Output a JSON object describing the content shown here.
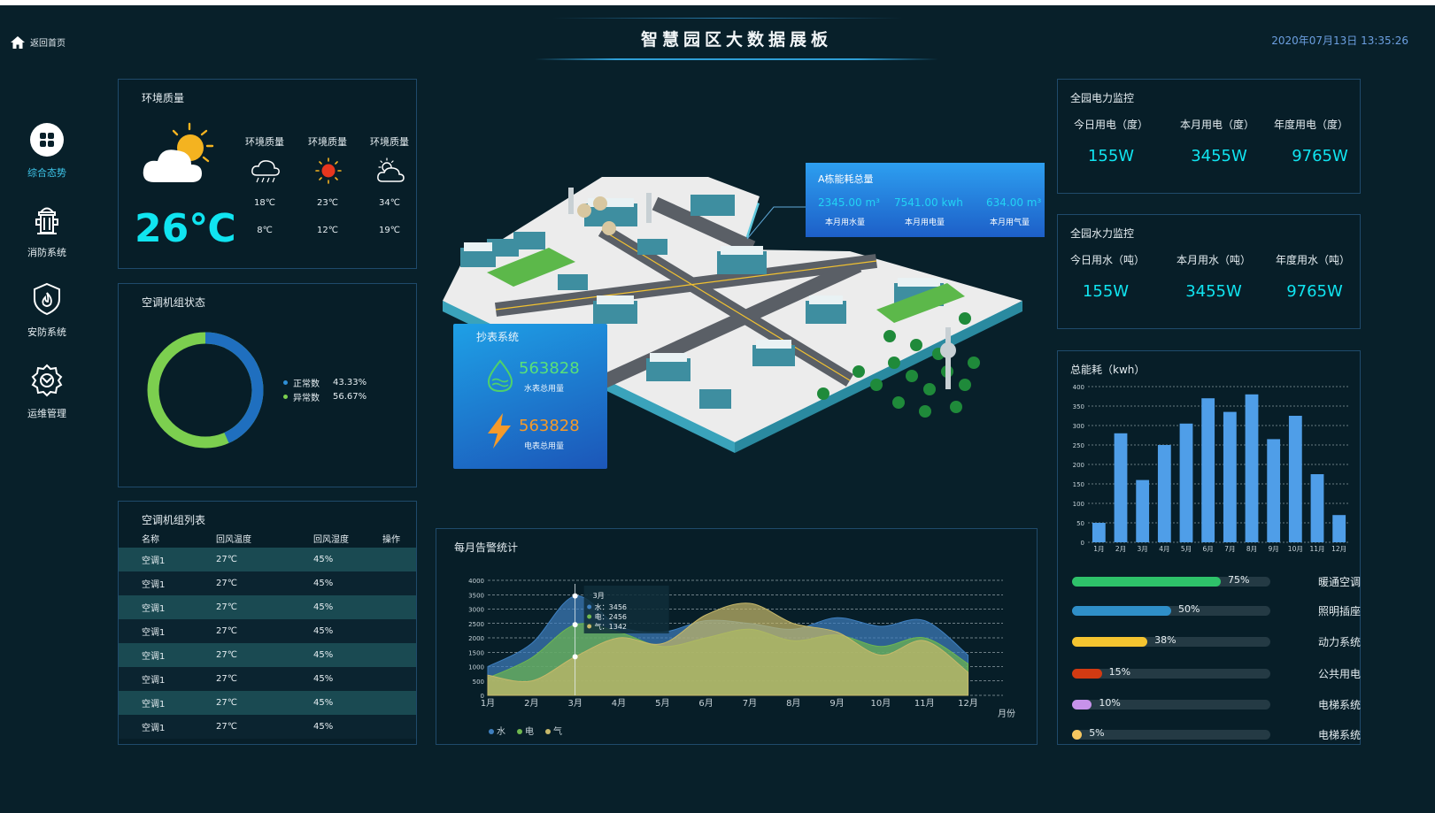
{
  "header": {
    "home_label": "返回首页",
    "title": "智慧园区大数据展板",
    "datetime": "2020年07月13日 13:35:26"
  },
  "nav": {
    "items": [
      {
        "label": "综合态势"
      },
      {
        "label": "消防系统"
      },
      {
        "label": "安防系统"
      },
      {
        "label": "运维管理"
      }
    ]
  },
  "env": {
    "title": "环境质量",
    "current_temp": "26℃",
    "cols": [
      {
        "label": "环境质量",
        "icon": "rain-cloud-icon",
        "high": "18℃",
        "low": "8℃"
      },
      {
        "label": "环境质量",
        "icon": "sun-icon",
        "high": "23℃",
        "low": "12℃"
      },
      {
        "label": "环境质量",
        "icon": "partly-cloudy-icon",
        "high": "34℃",
        "low": "19℃"
      }
    ]
  },
  "ac_status": {
    "title": "空调机组状态",
    "legend": [
      {
        "label": "正常数",
        "value": "43.33%",
        "color": "#1f6fbf",
        "pct": 43.33
      },
      {
        "label": "异常数",
        "value": "56.67%",
        "color": "#7ccf4f",
        "pct": 56.67
      }
    ]
  },
  "ac_list": {
    "title": "空调机组列表",
    "headers": [
      "名称",
      "回风温度",
      "回风湿度",
      "操作"
    ],
    "rows": [
      [
        "空调1",
        "27℃",
        "45%",
        ""
      ],
      [
        "空调1",
        "27℃",
        "45%",
        ""
      ],
      [
        "空调1",
        "27℃",
        "45%",
        ""
      ],
      [
        "空调1",
        "27℃",
        "45%",
        ""
      ],
      [
        "空调1",
        "27℃",
        "45%",
        ""
      ],
      [
        "空调1",
        "27℃",
        "45%",
        ""
      ],
      [
        "空调1",
        "27℃",
        "45%",
        ""
      ],
      [
        "空调1",
        "27℃",
        "45%",
        ""
      ]
    ]
  },
  "meter": {
    "title": "抄表系统",
    "water_value": "563828",
    "water_label": "水表总用量",
    "elec_value": "563828",
    "elec_label": "电表总用量"
  },
  "building": {
    "title": "A栋能耗总量",
    "items": [
      {
        "value": "2345.00 m³",
        "label": "本月用水量"
      },
      {
        "value": "7541.00 kwh",
        "label": "本月用电量"
      },
      {
        "value": "634.00 m³",
        "label": "本月用气量"
      }
    ]
  },
  "power": {
    "title": "全园电力监控",
    "items": [
      {
        "label": "今日用电（度）",
        "value": "155W"
      },
      {
        "label": "本月用电（度）",
        "value": "3455W"
      },
      {
        "label": "年度用电（度）",
        "value": "9765W"
      }
    ]
  },
  "water": {
    "title": "全园水力监控",
    "items": [
      {
        "label": "今日用水（吨）",
        "value": "155W"
      },
      {
        "label": "本月用水（吨）",
        "value": "3455W"
      },
      {
        "label": "年度用水（吨）",
        "value": "9765W"
      }
    ]
  },
  "energy_bars": [
    {
      "pct_label": "75%",
      "pct": 75,
      "name": "暖通空调",
      "color": "#2ec26a"
    },
    {
      "pct_label": "50%",
      "pct": 50,
      "name": "照明插座",
      "color": "#2f8fc8"
    },
    {
      "pct_label": "38%",
      "pct": 38,
      "name": "动力系统",
      "color": "#f4c430"
    },
    {
      "pct_label": "15%",
      "pct": 15,
      "name": "公共用电",
      "color": "#d23a12"
    },
    {
      "pct_label": "10%",
      "pct": 10,
      "name": "电梯系统",
      "color": "#c792ea"
    },
    {
      "pct_label": "5%",
      "pct": 5,
      "name": "电梯系统",
      "color": "#f6c760"
    }
  ],
  "chart_data": [
    {
      "type": "bar",
      "title": "总能耗（kwh）",
      "categories": [
        "1月",
        "2月",
        "3月",
        "4月",
        "5月",
        "6月",
        "7月",
        "8月",
        "9月",
        "10月",
        "11月",
        "12月"
      ],
      "values": [
        50,
        280,
        160,
        250,
        305,
        370,
        335,
        380,
        265,
        325,
        175,
        70
      ],
      "ylim": [
        0,
        400
      ],
      "yticks": [
        0,
        50,
        100,
        150,
        200,
        250,
        300,
        350,
        400
      ],
      "color": "#4f9ee8",
      "grid": true
    },
    {
      "type": "area",
      "title": "每月告警统计",
      "x": [
        "1月",
        "2月",
        "3月",
        "4月",
        "5月",
        "6月",
        "7月",
        "8月",
        "9月",
        "10月",
        "11月",
        "12月"
      ],
      "xlabel": "月份",
      "ylim": [
        0,
        4000
      ],
      "yticks": [
        0,
        500,
        1000,
        1500,
        2000,
        2500,
        3000,
        3500,
        4000
      ],
      "series": [
        {
          "name": "水",
          "color": "#3e7fbf",
          "values": [
            1000,
            1800,
            3456,
            2400,
            2200,
            2600,
            2500,
            2300,
            2700,
            2400,
            2600,
            1400
          ]
        },
        {
          "name": "电",
          "color": "#6fb84f",
          "values": [
            600,
            1300,
            2456,
            2200,
            1700,
            2000,
            2300,
            1900,
            2100,
            1700,
            2000,
            1100
          ]
        },
        {
          "name": "气",
          "color": "#c8b96a",
          "values": [
            700,
            500,
            1342,
            2000,
            1800,
            2800,
            3200,
            2500,
            2200,
            1400,
            1900,
            800
          ]
        }
      ],
      "tooltip": {
        "title": "3月",
        "lines": [
          "水：3456",
          "电：2456",
          "气：1342"
        ]
      }
    }
  ]
}
